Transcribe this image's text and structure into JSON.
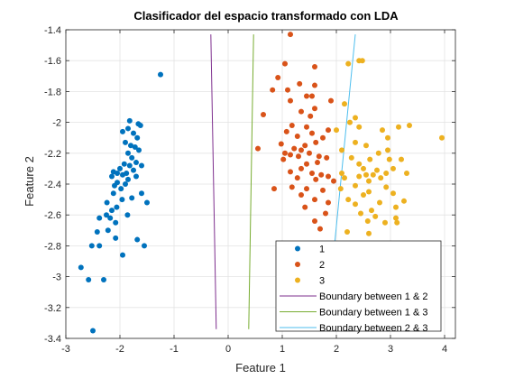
{
  "chart_data": {
    "type": "scatter",
    "title": "Clasificador del espacio transformado con LDA",
    "xlabel": "Feature 1",
    "ylabel": "Feature 2",
    "xlim": [
      -3,
      4.2
    ],
    "ylim": [
      -3.4,
      -1.4
    ],
    "xticks": [
      "-3",
      "-2",
      "-1",
      "0",
      "1",
      "2",
      "3",
      "4"
    ],
    "yticks": [
      "-1.4",
      "-1.6",
      "-1.8",
      "-2",
      "-2.2",
      "-2.4",
      "-2.6",
      "-2.8",
      "-3",
      "-3.2",
      "-3.4"
    ],
    "grid": true,
    "legend_position": "bottom-right",
    "series": [
      {
        "name": "1",
        "kind": "points",
        "color": "#0072bd",
        "points": [
          [
            -1.25,
            -1.69
          ],
          [
            -1.82,
            -1.99
          ],
          [
            -1.66,
            -2.01
          ],
          [
            -1.62,
            -2.02
          ],
          [
            -1.85,
            -2.04
          ],
          [
            -1.95,
            -2.06
          ],
          [
            -1.75,
            -2.07
          ],
          [
            -1.68,
            -2.1
          ],
          [
            -1.8,
            -2.15
          ],
          [
            -1.9,
            -2.13
          ],
          [
            -1.72,
            -2.16
          ],
          [
            -1.65,
            -2.18
          ],
          [
            -1.85,
            -2.2
          ],
          [
            -1.78,
            -2.23
          ],
          [
            -1.7,
            -2.26
          ],
          [
            -1.92,
            -2.27
          ],
          [
            -1.6,
            -2.28
          ],
          [
            -1.82,
            -2.28
          ],
          [
            -2.0,
            -2.3
          ],
          [
            -1.75,
            -2.31
          ],
          [
            -2.12,
            -2.32
          ],
          [
            -2.05,
            -2.33
          ],
          [
            -1.88,
            -2.33
          ],
          [
            -1.95,
            -2.34
          ],
          [
            -2.15,
            -2.35
          ],
          [
            -1.7,
            -2.35
          ],
          [
            -1.85,
            -2.37
          ],
          [
            -2.05,
            -2.39
          ],
          [
            -1.9,
            -2.4
          ],
          [
            -2.1,
            -2.41
          ],
          [
            -1.98,
            -2.43
          ],
          [
            -2.12,
            -2.46
          ],
          [
            -1.6,
            -2.46
          ],
          [
            -1.78,
            -2.49
          ],
          [
            -1.96,
            -2.5
          ],
          [
            -2.24,
            -2.52
          ],
          [
            -1.5,
            -2.52
          ],
          [
            -2.06,
            -2.55
          ],
          [
            -2.15,
            -2.57
          ],
          [
            -1.86,
            -2.6
          ],
          [
            -2.25,
            -2.6
          ],
          [
            -2.18,
            -2.62
          ],
          [
            -2.38,
            -2.62
          ],
          [
            -2.08,
            -2.65
          ],
          [
            -2.22,
            -2.7
          ],
          [
            -2.42,
            -2.71
          ],
          [
            -2.08,
            -2.75
          ],
          [
            -1.68,
            -2.76
          ],
          [
            -1.55,
            -2.8
          ],
          [
            -2.52,
            -2.8
          ],
          [
            -2.38,
            -2.8
          ],
          [
            -1.95,
            -2.86
          ],
          [
            -2.72,
            -2.94
          ],
          [
            -2.58,
            -3.02
          ],
          [
            -2.3,
            -3.02
          ],
          [
            -2.5,
            -3.35
          ]
        ]
      },
      {
        "name": "2",
        "kind": "points",
        "color": "#d95319",
        "points": [
          [
            1.15,
            -1.43
          ],
          [
            1.05,
            -1.62
          ],
          [
            1.6,
            -1.64
          ],
          [
            0.92,
            -1.71
          ],
          [
            1.32,
            -1.75
          ],
          [
            1.6,
            -1.76
          ],
          [
            0.82,
            -1.79
          ],
          [
            1.1,
            -1.79
          ],
          [
            1.45,
            -1.83
          ],
          [
            1.55,
            -1.83
          ],
          [
            1.15,
            -1.86
          ],
          [
            1.9,
            -1.86
          ],
          [
            1.6,
            -1.91
          ],
          [
            1.35,
            -1.93
          ],
          [
            0.65,
            -1.95
          ],
          [
            1.52,
            -1.96
          ],
          [
            1.18,
            -2.02
          ],
          [
            1.45,
            -2.03
          ],
          [
            1.85,
            -2.05
          ],
          [
            1.08,
            -2.06
          ],
          [
            1.55,
            -2.07
          ],
          [
            1.28,
            -2.09
          ],
          [
            1.75,
            -2.1
          ],
          [
            1.62,
            -2.13
          ],
          [
            0.98,
            -2.14
          ],
          [
            1.42,
            -2.15
          ],
          [
            1.22,
            -2.17
          ],
          [
            0.55,
            -2.17
          ],
          [
            1.35,
            -2.18
          ],
          [
            1.05,
            -2.2
          ],
          [
            1.5,
            -2.2
          ],
          [
            1.15,
            -2.21
          ],
          [
            1.68,
            -2.22
          ],
          [
            1.3,
            -2.22
          ],
          [
            1.82,
            -2.23
          ],
          [
            1.02,
            -2.24
          ],
          [
            1.65,
            -2.26
          ],
          [
            1.45,
            -2.27
          ],
          [
            1.35,
            -2.3
          ],
          [
            1.15,
            -2.32
          ],
          [
            1.55,
            -2.33
          ],
          [
            1.72,
            -2.34
          ],
          [
            1.85,
            -2.35
          ],
          [
            1.28,
            -2.36
          ],
          [
            1.62,
            -2.37
          ],
          [
            1.95,
            -2.38
          ],
          [
            1.18,
            -2.42
          ],
          [
            0.85,
            -2.43
          ],
          [
            1.45,
            -2.43
          ],
          [
            1.75,
            -2.44
          ],
          [
            1.35,
            -2.47
          ],
          [
            1.6,
            -2.5
          ],
          [
            1.85,
            -2.52
          ],
          [
            1.42,
            -2.55
          ],
          [
            1.8,
            -2.59
          ],
          [
            1.6,
            -2.64
          ],
          [
            1.7,
            -2.69
          ]
        ]
      },
      {
        "name": "3",
        "kind": "points",
        "color": "#edb120",
        "points": [
          [
            2.42,
            -1.6
          ],
          [
            2.48,
            -1.6
          ],
          [
            2.22,
            -1.62
          ],
          [
            2.15,
            -1.88
          ],
          [
            2.35,
            -1.97
          ],
          [
            2.25,
            -2.0
          ],
          [
            2.42,
            -2.03
          ],
          [
            2.0,
            -2.05
          ],
          [
            2.85,
            -2.05
          ],
          [
            3.35,
            -2.02
          ],
          [
            3.95,
            -2.1
          ],
          [
            2.95,
            -2.1
          ],
          [
            3.15,
            -2.03
          ],
          [
            2.35,
            -2.13
          ],
          [
            2.1,
            -2.18
          ],
          [
            2.55,
            -2.15
          ],
          [
            2.95,
            -2.18
          ],
          [
            2.78,
            -2.2
          ],
          [
            2.28,
            -2.23
          ],
          [
            2.62,
            -2.24
          ],
          [
            2.98,
            -2.24
          ],
          [
            3.2,
            -2.24
          ],
          [
            2.42,
            -2.27
          ],
          [
            2.5,
            -2.3
          ],
          [
            3.05,
            -2.3
          ],
          [
            2.75,
            -2.31
          ],
          [
            2.1,
            -2.33
          ],
          [
            2.92,
            -2.33
          ],
          [
            2.55,
            -2.34
          ],
          [
            2.68,
            -2.34
          ],
          [
            3.3,
            -2.33
          ],
          [
            2.42,
            -2.35
          ],
          [
            2.15,
            -2.36
          ],
          [
            2.82,
            -2.36
          ],
          [
            2.6,
            -2.38
          ],
          [
            2.35,
            -2.41
          ],
          [
            2.92,
            -2.42
          ],
          [
            2.08,
            -2.43
          ],
          [
            2.6,
            -2.45
          ],
          [
            3.05,
            -2.46
          ],
          [
            2.5,
            -2.47
          ],
          [
            2.22,
            -2.5
          ],
          [
            3.25,
            -2.51
          ],
          [
            2.8,
            -2.52
          ],
          [
            2.35,
            -2.53
          ],
          [
            3.1,
            -2.55
          ],
          [
            2.65,
            -2.57
          ],
          [
            2.45,
            -2.59
          ],
          [
            2.72,
            -2.61
          ],
          [
            3.1,
            -2.62
          ],
          [
            2.58,
            -2.64
          ],
          [
            2.9,
            -2.65
          ],
          [
            3.12,
            -2.65
          ],
          [
            2.2,
            -2.71
          ],
          [
            2.6,
            -2.72
          ],
          [
            2.52,
            -2.84
          ]
        ]
      },
      {
        "name": "Boundary between 1 & 2",
        "kind": "line",
        "color": "#7e2f8e",
        "points": [
          [
            -0.32,
            -1.43
          ],
          [
            -0.22,
            -3.34
          ]
        ]
      },
      {
        "name": "Boundary between 1 & 3",
        "kind": "line",
        "color": "#77ac30",
        "points": [
          [
            0.47,
            -1.43
          ],
          [
            0.38,
            -3.34
          ]
        ]
      },
      {
        "name": "Boundary between 2 & 3",
        "kind": "line",
        "color": "#4dbeee",
        "points": [
          [
            2.35,
            -1.43
          ],
          [
            1.95,
            -2.85
          ]
        ]
      }
    ]
  }
}
